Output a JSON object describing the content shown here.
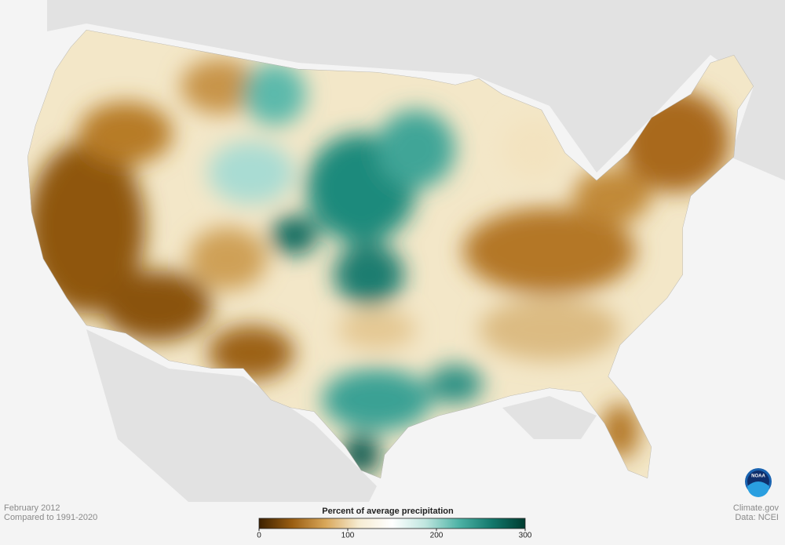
{
  "header": {
    "period": "February 2012",
    "baseline": "Compared to 1991-2020"
  },
  "legend": {
    "title": "Percent of average precipitation",
    "range": [
      0,
      300
    ],
    "ticks": [
      0,
      100,
      200,
      300
    ],
    "colors": [
      "#3d2100",
      "#9a5e12",
      "#d9a75a",
      "#f6ecd2",
      "#ffffff",
      "#bfe6df",
      "#4eb3a6",
      "#12786c",
      "#003c30"
    ]
  },
  "credits": {
    "site": "Climate.gov",
    "source": "Data: NCEI",
    "logo": "NOAA"
  }
}
